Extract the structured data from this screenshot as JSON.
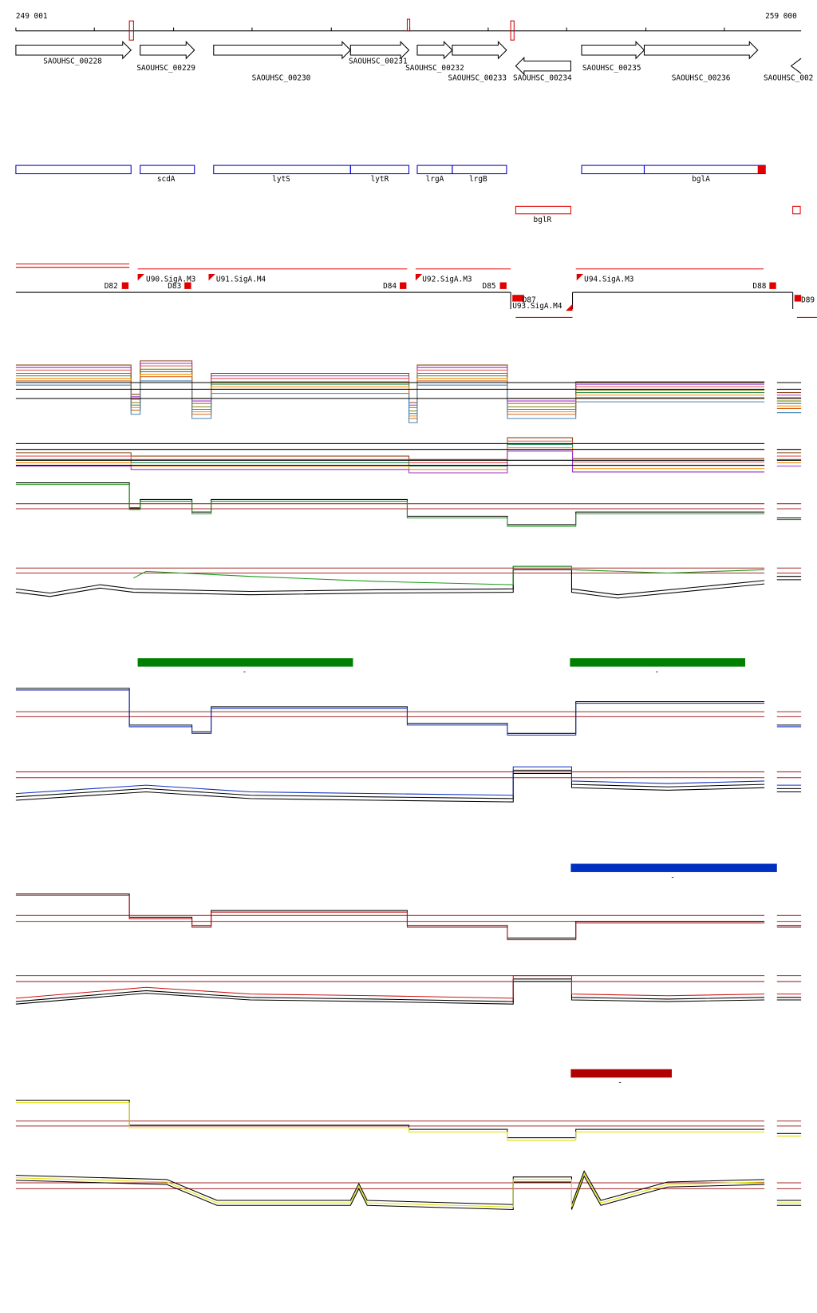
{
  "ruler": {
    "start": "249 001",
    "end": "259 000"
  },
  "genes": [
    "SAOUHSC_00228",
    "SAOUHSC_00229",
    "SAOUHSC_00230",
    "SAOUHSC_00231",
    "SAOUHSC_00232",
    "SAOUHSC_00233",
    "SAOUHSC_00234",
    "SAOUHSC_00235",
    "SAOUHSC_00236",
    "SAOUHSC_002"
  ],
  "operons": [
    "scdA",
    "lytS",
    "lytR",
    "lrgA",
    "lrgB",
    "bglA",
    "bglR"
  ],
  "elements": [
    "D82",
    "U90.SigA.M3",
    "D83",
    "U91.SigA.M4",
    "D84",
    "U92.SigA.M3",
    "D85",
    "D87",
    "U93.SigA.M4",
    "U94.SigA.M3",
    "D88",
    "D89"
  ],
  "bar_labels": [
    "-",
    "-",
    "-",
    "-"
  ]
}
